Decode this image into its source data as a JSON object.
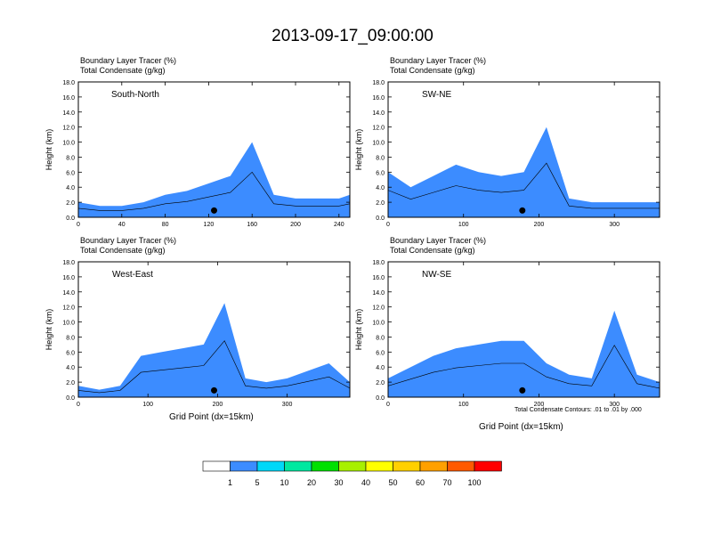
{
  "title": "2013-09-17_09:00:00",
  "panels": [
    {
      "name": "South-North",
      "xmax": 250,
      "xticks": [
        0,
        40,
        80,
        120,
        160,
        200,
        240
      ],
      "marker_x": 125
    },
    {
      "name": "SW-NE",
      "xmax": 360,
      "xticks": [
        0,
        100,
        200,
        300
      ],
      "marker_x": 178
    },
    {
      "name": "West-East",
      "xmax": 390,
      "xticks": [
        0,
        100,
        200,
        300
      ],
      "marker_x": 195
    },
    {
      "name": "NW-SE",
      "xmax": 360,
      "xticks": [
        0,
        100,
        200,
        300
      ],
      "marker_x": 178
    }
  ],
  "field_labels": {
    "tracer": "Boundary Layer Tracer   (%)",
    "condensate": "Total Condensate   (g/kg)"
  },
  "ylabel": "Height (km)",
  "xlabel": "Grid Point (dx=15km)",
  "footnote": "Total Condensate Contours: .01 to .01 by .000",
  "contour_label": "0.01",
  "yticks": [
    "0.0",
    "2.0",
    "4.0",
    "6.0",
    "8.0",
    "10.0",
    "12.0",
    "14.0",
    "16.0",
    "18.0"
  ],
  "colorbar": {
    "labels": [
      "1",
      "5",
      "10",
      "20",
      "30",
      "40",
      "50",
      "60",
      "70",
      "100"
    ],
    "colors": [
      "#ffffff",
      "#3c8cff",
      "#00d8f8",
      "#00e8a0",
      "#00e000",
      "#a8f000",
      "#ffff00",
      "#ffd000",
      "#ffa000",
      "#ff5a00",
      "#ff0000"
    ]
  },
  "chart_data": [
    {
      "type": "heatmap",
      "title": "South-North",
      "xlabel": "",
      "ylabel": "Height (km)",
      "xlim": [
        0,
        250
      ],
      "ylim": [
        0,
        18
      ],
      "x": [
        0,
        20,
        40,
        60,
        80,
        100,
        120,
        140,
        160,
        180,
        200,
        220,
        240,
        250
      ],
      "series": [
        {
          "name": "Boundary Layer Tracer top (km)",
          "values": [
            2.0,
            1.5,
            1.5,
            2.0,
            3.0,
            3.5,
            4.5,
            5.5,
            10.0,
            3.0,
            2.5,
            2.5,
            2.5,
            3.0
          ]
        }
      ]
    },
    {
      "type": "heatmap",
      "title": "SW-NE",
      "xlabel": "",
      "ylabel": "Height (km)",
      "xlim": [
        0,
        360
      ],
      "ylim": [
        0,
        18
      ],
      "x": [
        0,
        30,
        60,
        90,
        120,
        150,
        180,
        210,
        240,
        270,
        300,
        330,
        360
      ],
      "series": [
        {
          "name": "Boundary Layer Tracer top (km)",
          "values": [
            6.0,
            4.0,
            5.5,
            7.0,
            6.0,
            5.5,
            6.0,
            12.0,
            2.5,
            2.0,
            2.0,
            2.0,
            2.0
          ]
        }
      ]
    },
    {
      "type": "heatmap",
      "title": "West-East",
      "xlabel": "Grid Point (dx=15km)",
      "ylabel": "Height (km)",
      "xlim": [
        0,
        390
      ],
      "ylim": [
        0,
        18
      ],
      "x": [
        0,
        30,
        60,
        90,
        120,
        150,
        180,
        210,
        240,
        270,
        300,
        330,
        360,
        390
      ],
      "series": [
        {
          "name": "Boundary Layer Tracer top (km)",
          "values": [
            1.5,
            1.0,
            1.5,
            5.5,
            6.0,
            6.5,
            7.0,
            12.5,
            2.5,
            2.0,
            2.5,
            3.5,
            4.5,
            2.0
          ]
        }
      ]
    },
    {
      "type": "heatmap",
      "title": "NW-SE",
      "xlabel": "Grid Point (dx=15km)",
      "ylabel": "Height (km)",
      "xlim": [
        0,
        360
      ],
      "ylim": [
        0,
        18
      ],
      "x": [
        0,
        30,
        60,
        90,
        120,
        150,
        180,
        210,
        240,
        270,
        300,
        330,
        360
      ],
      "series": [
        {
          "name": "Boundary Layer Tracer top (km)",
          "values": [
            2.5,
            4.0,
            5.5,
            6.5,
            7.0,
            7.5,
            7.5,
            4.5,
            3.0,
            2.5,
            11.5,
            3.0,
            2.0
          ]
        }
      ]
    }
  ]
}
